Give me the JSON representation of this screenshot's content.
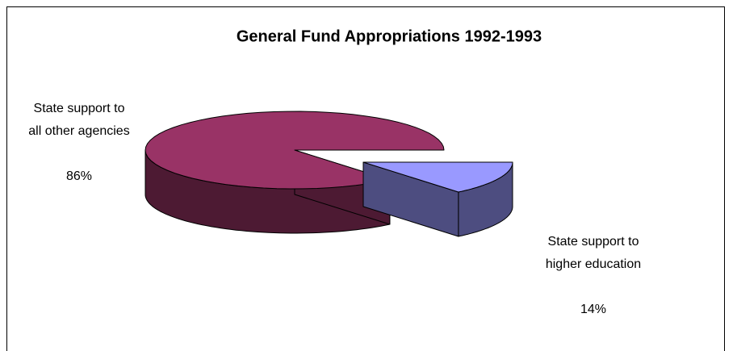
{
  "chart_data": {
    "type": "pie3d",
    "title": "General Fund Appropriations 1992-1993",
    "categories": [
      "State support to\nall other agencies",
      "State support to\nhigher education"
    ],
    "values": [
      86,
      14
    ],
    "value_labels": [
      "86%",
      "14%"
    ],
    "colors": [
      "#993366",
      "#9999ff"
    ]
  }
}
